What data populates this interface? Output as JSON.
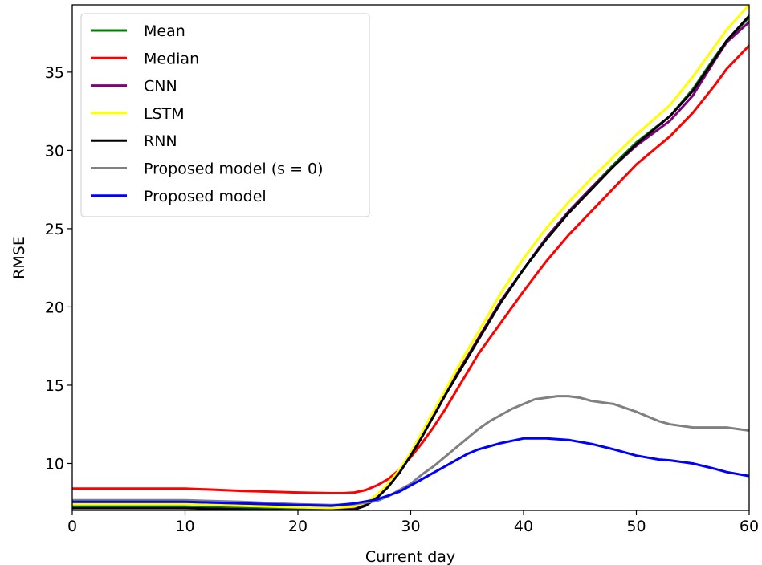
{
  "chart_data": {
    "type": "line",
    "xlabel": "Current day",
    "ylabel": "RMSE",
    "xlim": [
      0,
      60
    ],
    "ylim": [
      7.0,
      39.3
    ],
    "xticks": [
      0,
      10,
      20,
      30,
      40,
      50,
      60
    ],
    "yticks": [
      10,
      15,
      20,
      25,
      30,
      35
    ],
    "legend_position": "upper-left",
    "grid": false,
    "series": [
      {
        "name": "Mean",
        "color": "#008000",
        "x": [
          0,
          10,
          20,
          23,
          25,
          26,
          27,
          28,
          29,
          30,
          31,
          32,
          33,
          34,
          35,
          36,
          38,
          40,
          42,
          44,
          46,
          48,
          50,
          53,
          55,
          57,
          58,
          60
        ],
        "y": [
          7.3,
          7.3,
          7.15,
          7.15,
          7.2,
          7.4,
          7.9,
          8.6,
          9.5,
          10.6,
          11.8,
          13.0,
          14.3,
          15.6,
          16.8,
          18.0,
          20.4,
          22.4,
          24.4,
          26.1,
          27.6,
          29.1,
          30.5,
          32.2,
          33.9,
          36.0,
          37.0,
          38.5
        ]
      },
      {
        "name": "Median",
        "color": "#ff0000",
        "x": [
          0,
          10,
          15,
          20,
          23,
          24,
          25,
          26,
          27,
          28,
          29,
          30,
          31,
          32,
          33,
          34,
          35,
          36,
          38,
          40,
          42,
          44,
          46,
          48,
          50,
          53,
          55,
          57,
          58,
          60
        ],
        "y": [
          8.4,
          8.4,
          8.25,
          8.15,
          8.1,
          8.1,
          8.15,
          8.3,
          8.6,
          9.0,
          9.6,
          10.4,
          11.3,
          12.3,
          13.4,
          14.6,
          15.8,
          17.0,
          19.0,
          21.0,
          22.9,
          24.6,
          26.1,
          27.6,
          29.1,
          30.9,
          32.4,
          34.2,
          35.2,
          36.7
        ]
      },
      {
        "name": "CNN",
        "color": "#800080",
        "x": [
          0,
          10,
          20,
          23,
          25,
          26,
          27,
          28,
          29,
          30,
          31,
          32,
          33,
          34,
          35,
          36,
          38,
          40,
          42,
          44,
          46,
          48,
          50,
          53,
          55,
          57,
          58,
          60
        ],
        "y": [
          7.4,
          7.4,
          7.2,
          7.15,
          7.2,
          7.4,
          7.9,
          8.6,
          9.5,
          10.6,
          11.8,
          13.0,
          14.3,
          15.6,
          16.8,
          18.0,
          20.4,
          22.4,
          24.4,
          26.1,
          27.6,
          29.0,
          30.3,
          31.9,
          33.5,
          35.8,
          36.9,
          38.2
        ]
      },
      {
        "name": "LSTM",
        "color": "#ffff00",
        "x": [
          0,
          10,
          20,
          23,
          25,
          26,
          27,
          28,
          29,
          30,
          31,
          32,
          33,
          34,
          35,
          36,
          38,
          40,
          42,
          44,
          46,
          48,
          50,
          53,
          55,
          57,
          58,
          60
        ],
        "y": [
          7.4,
          7.4,
          7.2,
          7.15,
          7.25,
          7.5,
          8.0,
          8.7,
          9.6,
          10.7,
          12.0,
          13.3,
          14.6,
          15.9,
          17.2,
          18.4,
          20.9,
          23.1,
          25.0,
          26.7,
          28.2,
          29.6,
          31.0,
          32.9,
          34.7,
          36.7,
          37.7,
          39.3
        ]
      },
      {
        "name": "RNN",
        "color": "#000000",
        "x": [
          0,
          10,
          20,
          23,
          25,
          26,
          27,
          28,
          29,
          30,
          31,
          32,
          33,
          34,
          35,
          36,
          38,
          40,
          42,
          44,
          46,
          48,
          50,
          53,
          55,
          57,
          58,
          60
        ],
        "y": [
          7.15,
          7.15,
          7.0,
          7.0,
          7.05,
          7.3,
          7.8,
          8.5,
          9.4,
          10.5,
          11.7,
          13.0,
          14.3,
          15.5,
          16.7,
          17.9,
          20.3,
          22.4,
          24.3,
          26.0,
          27.5,
          29.0,
          30.4,
          32.2,
          33.8,
          35.9,
          37.0,
          38.6
        ]
      },
      {
        "name": "Proposed model (s = 0)",
        "color": "#808080",
        "x": [
          0,
          10,
          15,
          20,
          23,
          25,
          27,
          28,
          29,
          30,
          31,
          32,
          33,
          34,
          35,
          36,
          37,
          38,
          39,
          40,
          41,
          42,
          43,
          44,
          45,
          46,
          48,
          50,
          52,
          53,
          55,
          56,
          58,
          60
        ],
        "y": [
          7.65,
          7.65,
          7.55,
          7.4,
          7.35,
          7.4,
          7.6,
          7.9,
          8.3,
          8.7,
          9.3,
          9.8,
          10.4,
          11.0,
          11.6,
          12.2,
          12.7,
          13.1,
          13.5,
          13.8,
          14.1,
          14.2,
          14.3,
          14.3,
          14.2,
          14.0,
          13.8,
          13.3,
          12.7,
          12.5,
          12.3,
          12.3,
          12.3,
          12.1
        ]
      },
      {
        "name": "Proposed model",
        "color": "#0000ff",
        "x": [
          0,
          10,
          15,
          20,
          23,
          25,
          27,
          28,
          29,
          30,
          31,
          32,
          33,
          34,
          35,
          36,
          37,
          38,
          39,
          40,
          42,
          44,
          46,
          48,
          50,
          52,
          53,
          55,
          57,
          58,
          60
        ],
        "y": [
          7.55,
          7.55,
          7.45,
          7.35,
          7.3,
          7.45,
          7.7,
          7.95,
          8.2,
          8.6,
          9.0,
          9.4,
          9.8,
          10.2,
          10.6,
          10.9,
          11.1,
          11.3,
          11.45,
          11.6,
          11.6,
          11.5,
          11.25,
          10.9,
          10.5,
          10.25,
          10.2,
          10.0,
          9.65,
          9.45,
          9.2
        ]
      }
    ]
  }
}
